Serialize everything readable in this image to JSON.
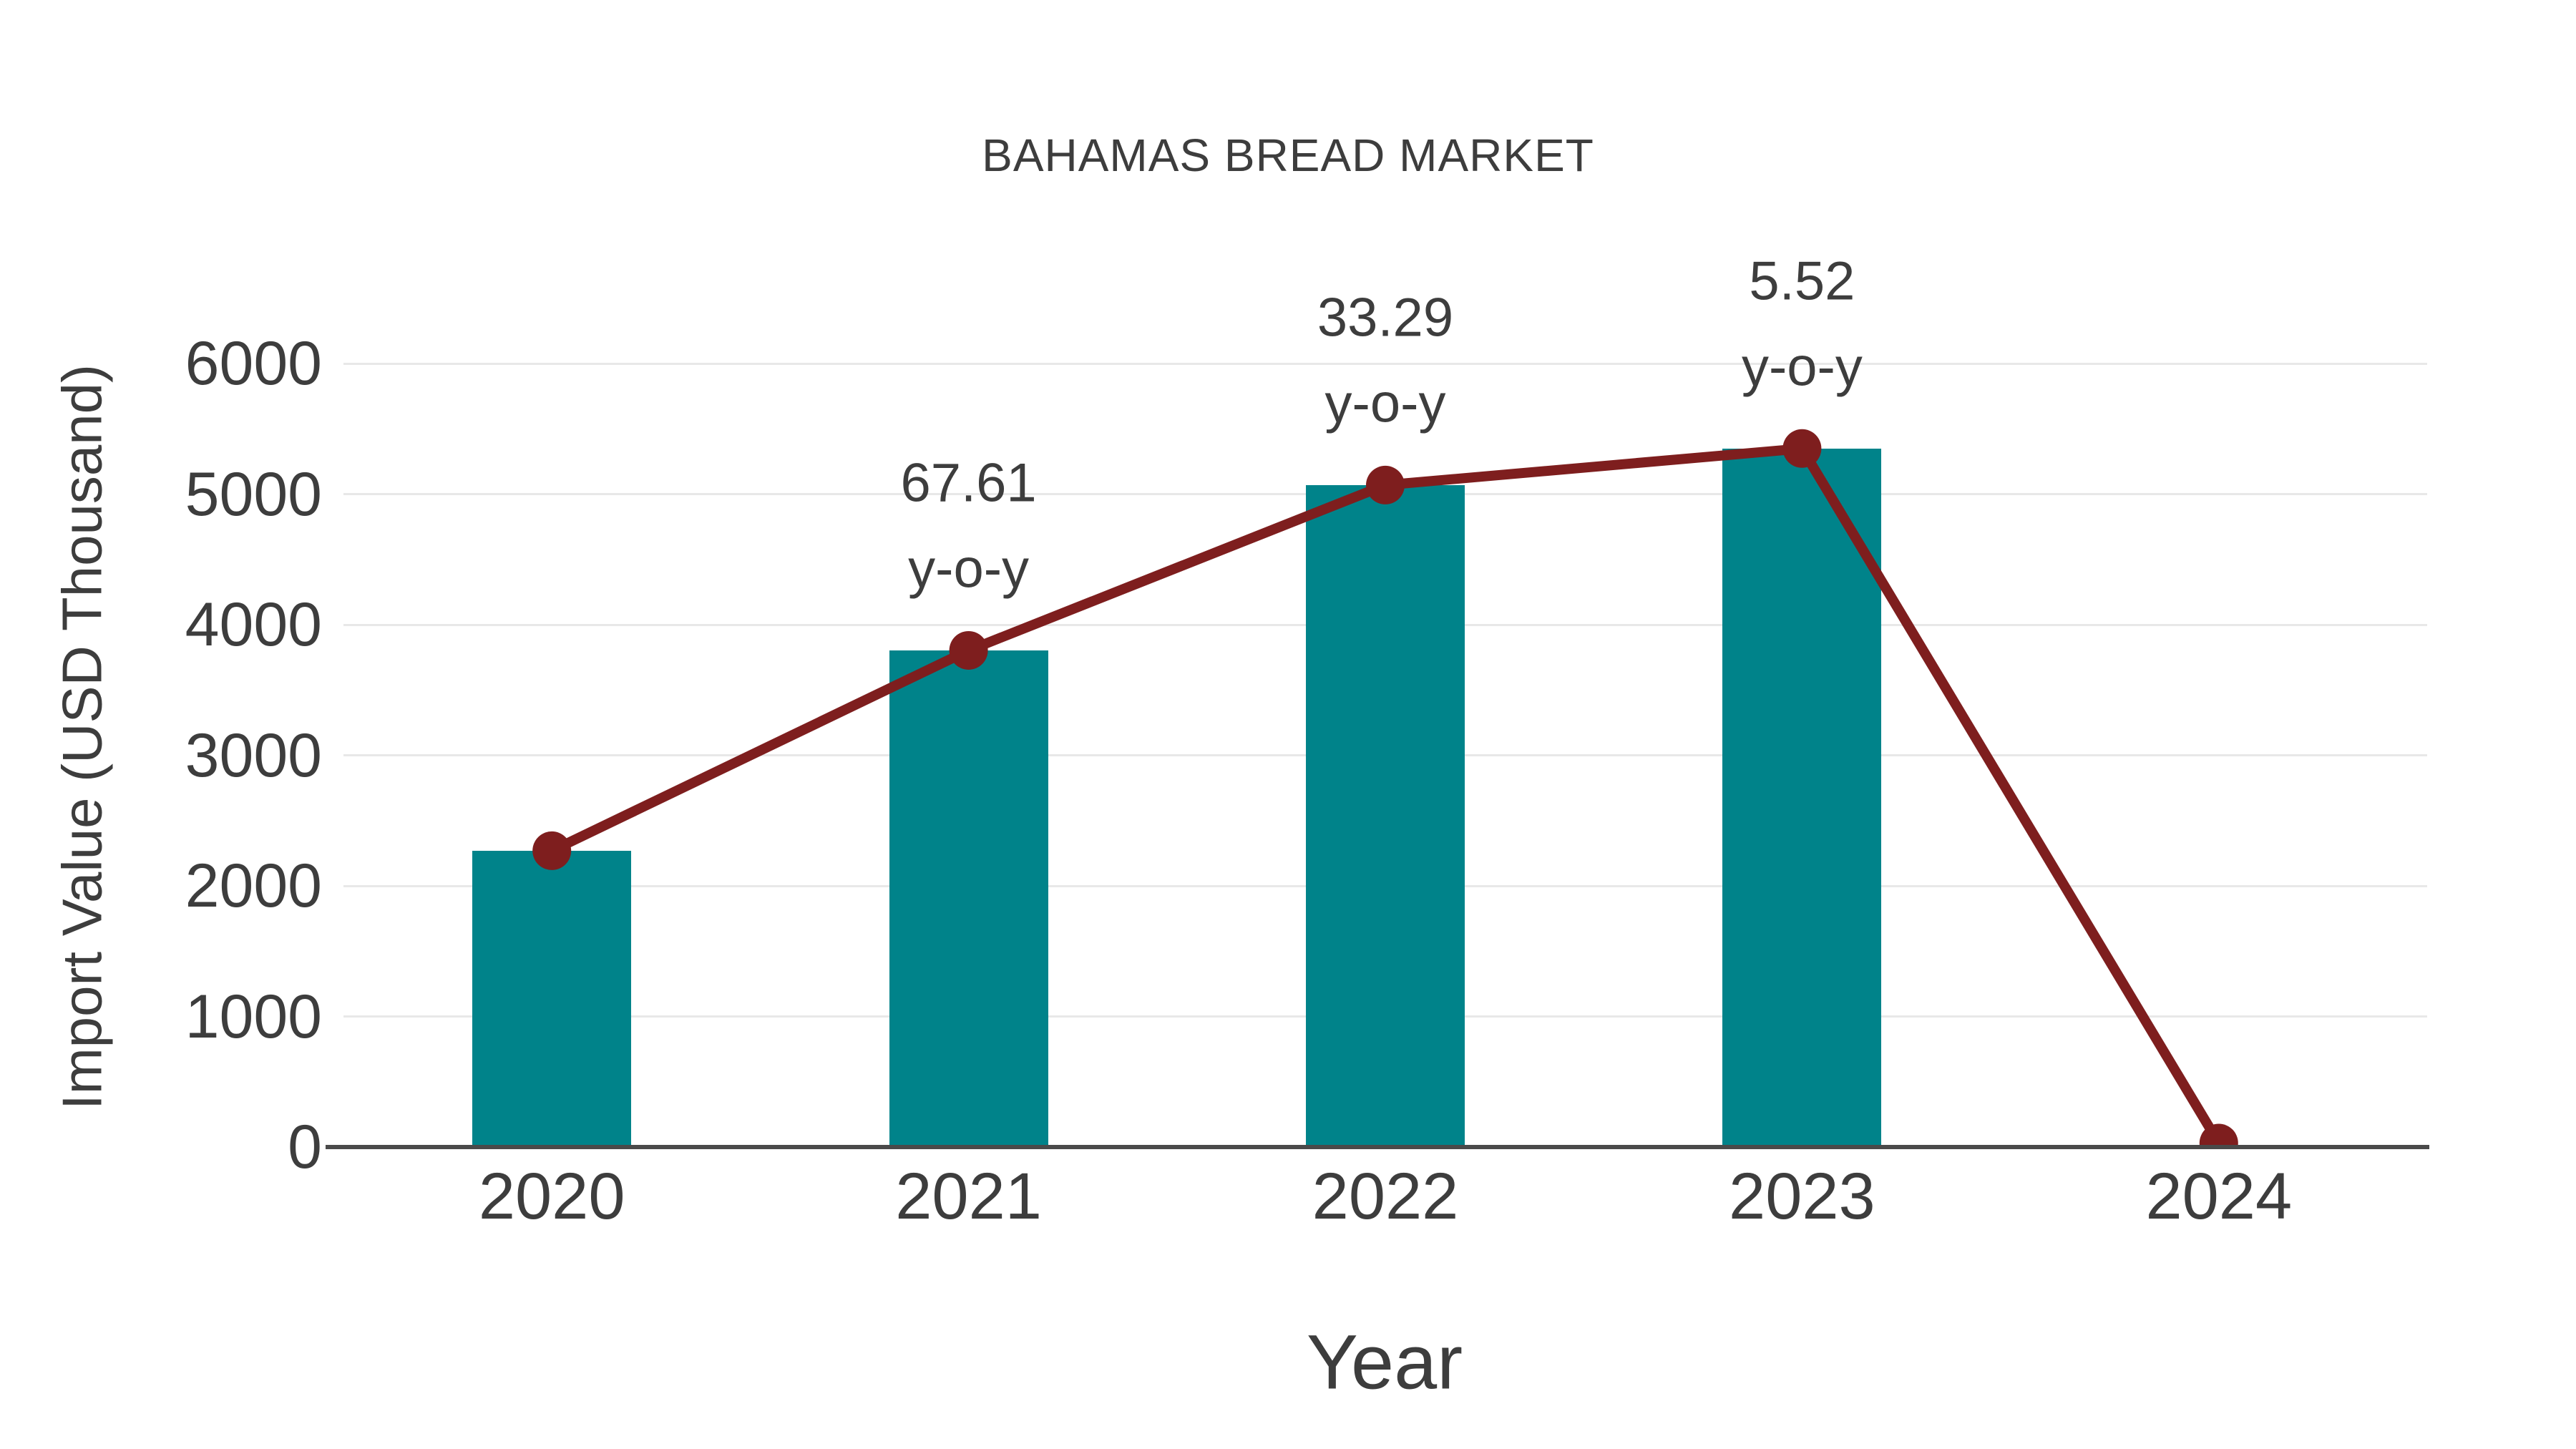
{
  "title": "BAHAMAS BREAD MARKET",
  "chart_data": {
    "type": "bar",
    "categories": [
      "2020",
      "2021",
      "2022",
      "2023",
      "2024"
    ],
    "series": [
      {
        "name": "Import Value bars",
        "type": "bar",
        "values": [
          2269,
          3803,
          5069,
          5349,
          null
        ]
      },
      {
        "name": "Import Value trend line",
        "type": "line",
        "values": [
          2269,
          3803,
          5069,
          5349,
          30
        ]
      }
    ],
    "annotations": [
      {
        "category": "2021",
        "line1": "67.61",
        "line2": "y-o-y"
      },
      {
        "category": "2022",
        "line1": "33.29",
        "line2": "y-o-y"
      },
      {
        "category": "2023",
        "line1": "5.52",
        "line2": "y-o-y"
      }
    ],
    "title": "BAHAMAS BREAD MARKET",
    "xlabel": "Year",
    "ylabel": "Import Value (USD Thousand)",
    "ylim": [
      0,
      6000
    ],
    "yticks": [
      0,
      1000,
      2000,
      3000,
      4000,
      5000,
      6000
    ],
    "grid": true,
    "legend": false,
    "colors": {
      "bar": "#00838a",
      "line": "#7e1e1e",
      "marker": "#7e1e1e",
      "grid": "#e8e8e8",
      "axis": "#4a4a4a",
      "text": "#3d3d3d"
    }
  }
}
